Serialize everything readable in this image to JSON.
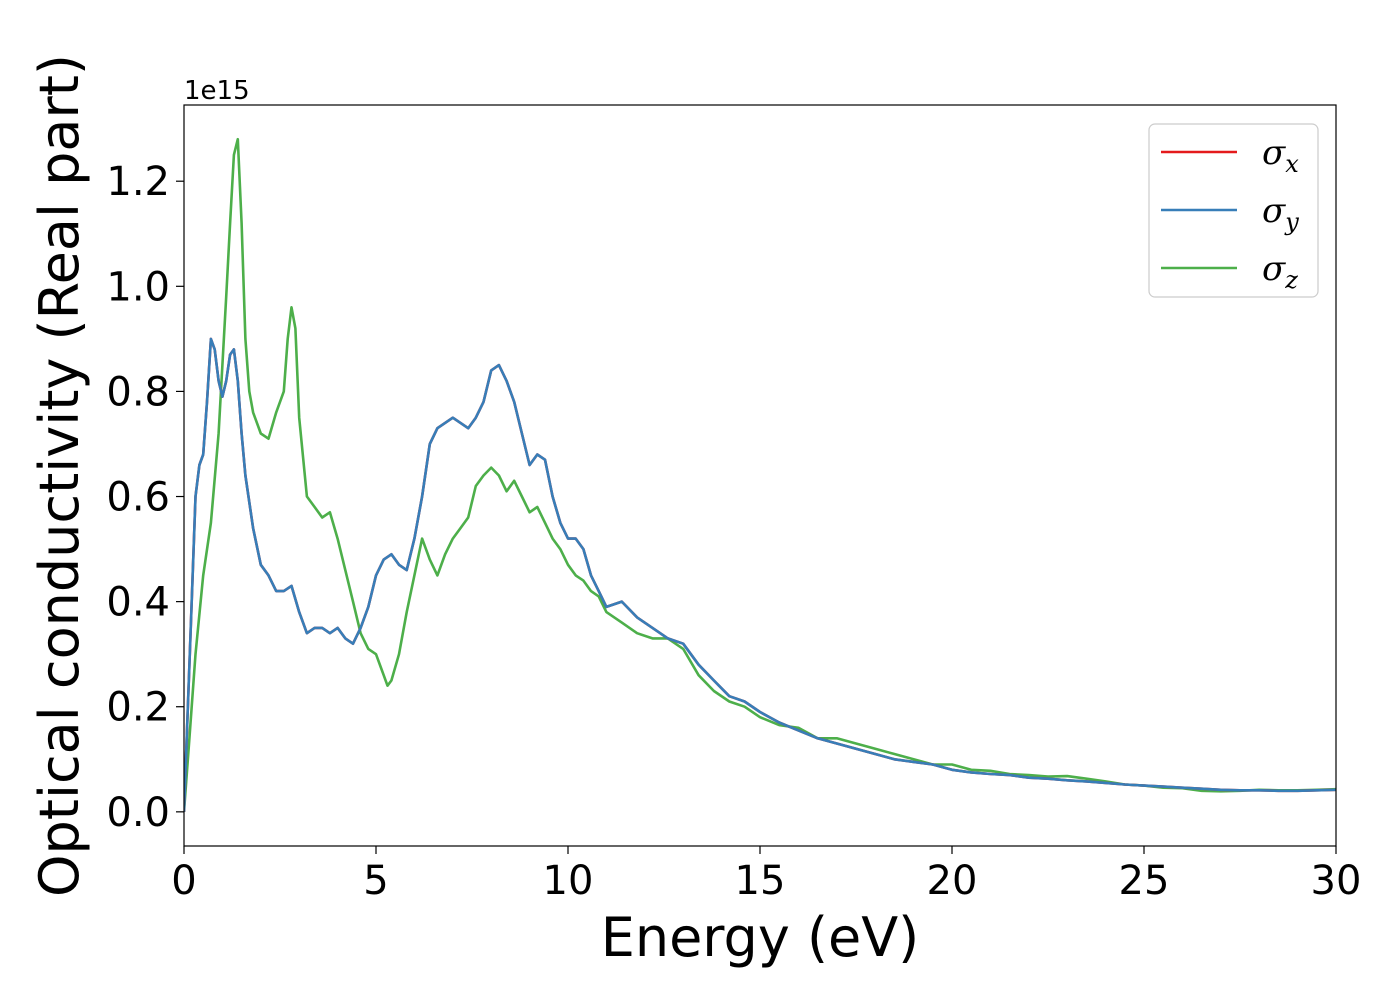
{
  "chart_data": {
    "type": "line",
    "title": "",
    "xlabel": "Energy (eV)",
    "ylabel": "Optical conductivity (Real part)",
    "y_offset_label": "1e15",
    "xlim": [
      0,
      30
    ],
    "ylim": [
      -0.065,
      1.345
    ],
    "x_ticks": [
      0,
      5,
      10,
      15,
      20,
      25,
      30
    ],
    "x_tick_labels": [
      "0",
      "5",
      "10",
      "15",
      "20",
      "25",
      "30"
    ],
    "y_ticks": [
      0.0,
      0.2,
      0.4,
      0.6,
      0.8,
      1.0,
      1.2
    ],
    "y_tick_labels": [
      "0.0",
      "0.2",
      "0.4",
      "0.6",
      "0.8",
      "1.0",
      "1.2"
    ],
    "grid": false,
    "legend_position": "top-right",
    "series": [
      {
        "name": "σx",
        "base": "σ",
        "sub": "x",
        "color": "#e41a1c",
        "x": [
          0,
          0.15,
          0.3,
          0.4,
          0.5,
          0.6,
          0.7,
          0.8,
          0.9,
          1.0,
          1.1,
          1.2,
          1.3,
          1.4,
          1.5,
          1.6,
          1.8,
          2.0,
          2.2,
          2.4,
          2.6,
          2.8,
          3.0,
          3.2,
          3.4,
          3.6,
          3.8,
          4.0,
          4.2,
          4.4,
          4.6,
          4.8,
          5.0,
          5.2,
          5.4,
          5.6,
          5.8,
          6.0,
          6.2,
          6.4,
          6.6,
          6.8,
          7.0,
          7.2,
          7.4,
          7.6,
          7.8,
          8.0,
          8.2,
          8.4,
          8.6,
          8.8,
          9.0,
          9.2,
          9.4,
          9.6,
          9.8,
          10.0,
          10.2,
          10.4,
          10.6,
          10.8,
          11.0,
          11.4,
          11.8,
          12.2,
          12.6,
          13.0,
          13.4,
          13.8,
          14.2,
          14.6,
          15.0,
          15.5,
          16.0,
          16.5,
          17.0,
          17.5,
          18.0,
          18.5,
          19.0,
          19.5,
          20.0,
          20.5,
          21.0,
          21.5,
          22.0,
          22.5,
          23.0,
          23.5,
          24.0,
          24.5,
          25.0,
          25.5,
          26.0,
          26.5,
          27.0,
          27.5,
          28.0,
          28.5,
          29.0,
          29.5,
          30.0
        ],
        "values": [
          0.0,
          0.3,
          0.6,
          0.66,
          0.68,
          0.78,
          0.9,
          0.88,
          0.82,
          0.79,
          0.82,
          0.87,
          0.88,
          0.82,
          0.72,
          0.64,
          0.54,
          0.47,
          0.45,
          0.42,
          0.42,
          0.43,
          0.38,
          0.34,
          0.35,
          0.35,
          0.34,
          0.35,
          0.33,
          0.32,
          0.35,
          0.39,
          0.45,
          0.48,
          0.49,
          0.47,
          0.46,
          0.52,
          0.6,
          0.7,
          0.73,
          0.74,
          0.75,
          0.74,
          0.73,
          0.75,
          0.78,
          0.84,
          0.85,
          0.82,
          0.78,
          0.72,
          0.66,
          0.68,
          0.67,
          0.6,
          0.55,
          0.52,
          0.52,
          0.5,
          0.45,
          0.42,
          0.39,
          0.4,
          0.37,
          0.35,
          0.33,
          0.32,
          0.28,
          0.25,
          0.22,
          0.21,
          0.19,
          0.17,
          0.155,
          0.14,
          0.13,
          0.12,
          0.11,
          0.1,
          0.095,
          0.09,
          0.08,
          0.075,
          0.072,
          0.07,
          0.065,
          0.063,
          0.06,
          0.058,
          0.055,
          0.052,
          0.05,
          0.048,
          0.046,
          0.044,
          0.042,
          0.041,
          0.041,
          0.04,
          0.04,
          0.041,
          0.042
        ]
      },
      {
        "name": "σy",
        "base": "σ",
        "sub": "y",
        "color": "#377eb8",
        "x": [
          0,
          0.15,
          0.3,
          0.4,
          0.5,
          0.6,
          0.7,
          0.8,
          0.9,
          1.0,
          1.1,
          1.2,
          1.3,
          1.4,
          1.5,
          1.6,
          1.8,
          2.0,
          2.2,
          2.4,
          2.6,
          2.8,
          3.0,
          3.2,
          3.4,
          3.6,
          3.8,
          4.0,
          4.2,
          4.4,
          4.6,
          4.8,
          5.0,
          5.2,
          5.4,
          5.6,
          5.8,
          6.0,
          6.2,
          6.4,
          6.6,
          6.8,
          7.0,
          7.2,
          7.4,
          7.6,
          7.8,
          8.0,
          8.2,
          8.4,
          8.6,
          8.8,
          9.0,
          9.2,
          9.4,
          9.6,
          9.8,
          10.0,
          10.2,
          10.4,
          10.6,
          10.8,
          11.0,
          11.4,
          11.8,
          12.2,
          12.6,
          13.0,
          13.4,
          13.8,
          14.2,
          14.6,
          15.0,
          15.5,
          16.0,
          16.5,
          17.0,
          17.5,
          18.0,
          18.5,
          19.0,
          19.5,
          20.0,
          20.5,
          21.0,
          21.5,
          22.0,
          22.5,
          23.0,
          23.5,
          24.0,
          24.5,
          25.0,
          25.5,
          26.0,
          26.5,
          27.0,
          27.5,
          28.0,
          28.5,
          29.0,
          29.5,
          30.0
        ],
        "values": [
          0.0,
          0.3,
          0.6,
          0.66,
          0.68,
          0.78,
          0.9,
          0.88,
          0.82,
          0.79,
          0.82,
          0.87,
          0.88,
          0.82,
          0.72,
          0.64,
          0.54,
          0.47,
          0.45,
          0.42,
          0.42,
          0.43,
          0.38,
          0.34,
          0.35,
          0.35,
          0.34,
          0.35,
          0.33,
          0.32,
          0.35,
          0.39,
          0.45,
          0.48,
          0.49,
          0.47,
          0.46,
          0.52,
          0.6,
          0.7,
          0.73,
          0.74,
          0.75,
          0.74,
          0.73,
          0.75,
          0.78,
          0.84,
          0.85,
          0.82,
          0.78,
          0.72,
          0.66,
          0.68,
          0.67,
          0.6,
          0.55,
          0.52,
          0.52,
          0.5,
          0.45,
          0.42,
          0.39,
          0.4,
          0.37,
          0.35,
          0.33,
          0.32,
          0.28,
          0.25,
          0.22,
          0.21,
          0.19,
          0.17,
          0.155,
          0.14,
          0.13,
          0.12,
          0.11,
          0.1,
          0.095,
          0.09,
          0.08,
          0.075,
          0.072,
          0.07,
          0.065,
          0.063,
          0.06,
          0.058,
          0.055,
          0.052,
          0.05,
          0.048,
          0.046,
          0.044,
          0.042,
          0.041,
          0.041,
          0.04,
          0.04,
          0.041,
          0.042
        ]
      },
      {
        "name": "σz",
        "base": "σ",
        "sub": "z",
        "color": "#4daf4a",
        "x": [
          0,
          0.15,
          0.3,
          0.5,
          0.7,
          0.9,
          1.0,
          1.1,
          1.2,
          1.3,
          1.4,
          1.5,
          1.6,
          1.7,
          1.8,
          2.0,
          2.2,
          2.4,
          2.6,
          2.7,
          2.8,
          2.9,
          3.0,
          3.2,
          3.4,
          3.6,
          3.8,
          4.0,
          4.2,
          4.4,
          4.6,
          4.8,
          5.0,
          5.2,
          5.3,
          5.4,
          5.6,
          5.8,
          6.0,
          6.2,
          6.4,
          6.6,
          6.8,
          7.0,
          7.2,
          7.4,
          7.6,
          7.8,
          8.0,
          8.2,
          8.4,
          8.6,
          8.8,
          9.0,
          9.2,
          9.4,
          9.6,
          9.8,
          10.0,
          10.2,
          10.4,
          10.6,
          10.8,
          11.0,
          11.4,
          11.8,
          12.2,
          12.6,
          13.0,
          13.4,
          13.8,
          14.2,
          14.6,
          15.0,
          15.5,
          16.0,
          16.5,
          17.0,
          17.5,
          18.0,
          18.5,
          19.0,
          19.5,
          20.0,
          20.5,
          21.0,
          21.5,
          22.0,
          22.5,
          23.0,
          23.5,
          24.0,
          24.5,
          25.0,
          25.5,
          26.0,
          26.5,
          27.0,
          27.5,
          28.0,
          28.5,
          29.0,
          29.5,
          30.0
        ],
        "values": [
          0.0,
          0.15,
          0.3,
          0.45,
          0.55,
          0.72,
          0.85,
          0.98,
          1.12,
          1.25,
          1.28,
          1.12,
          0.9,
          0.8,
          0.76,
          0.72,
          0.71,
          0.76,
          0.8,
          0.9,
          0.96,
          0.92,
          0.75,
          0.6,
          0.58,
          0.56,
          0.57,
          0.52,
          0.46,
          0.4,
          0.34,
          0.31,
          0.3,
          0.26,
          0.24,
          0.25,
          0.3,
          0.38,
          0.45,
          0.52,
          0.48,
          0.45,
          0.49,
          0.52,
          0.54,
          0.56,
          0.62,
          0.64,
          0.655,
          0.64,
          0.61,
          0.63,
          0.6,
          0.57,
          0.58,
          0.55,
          0.52,
          0.5,
          0.47,
          0.45,
          0.44,
          0.42,
          0.41,
          0.38,
          0.36,
          0.34,
          0.33,
          0.33,
          0.31,
          0.26,
          0.23,
          0.21,
          0.2,
          0.18,
          0.165,
          0.16,
          0.14,
          0.14,
          0.13,
          0.12,
          0.11,
          0.1,
          0.09,
          0.09,
          0.08,
          0.078,
          0.072,
          0.07,
          0.067,
          0.068,
          0.063,
          0.058,
          0.052,
          0.05,
          0.046,
          0.045,
          0.04,
          0.039,
          0.04,
          0.042,
          0.041,
          0.041,
          0.042,
          0.043
        ]
      }
    ]
  }
}
